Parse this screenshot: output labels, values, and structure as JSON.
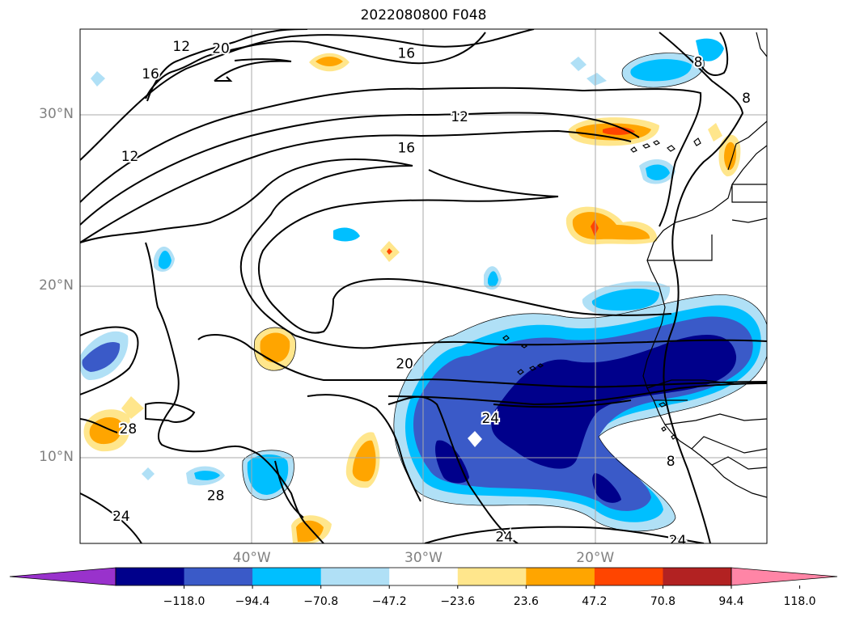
{
  "title": "2022080800 F048",
  "map": {
    "lon_range": [
      -50,
      -10
    ],
    "lat_range": [
      5,
      35
    ],
    "lat_ticks": [
      {
        "value": 30,
        "label": "30°N"
      },
      {
        "value": 20,
        "label": "20°N"
      },
      {
        "value": 10,
        "label": "10°N"
      }
    ],
    "lon_ticks": [
      {
        "value": -40,
        "label": "40°W"
      },
      {
        "value": -30,
        "label": "30°W"
      },
      {
        "value": -20,
        "label": "20°W"
      }
    ],
    "contour_labels": [
      {
        "text": "12",
        "lon": -44.1,
        "lat": 34.0
      },
      {
        "text": "20",
        "lon": -41.8,
        "lat": 33.9
      },
      {
        "text": "16",
        "lon": -31.0,
        "lat": 33.6
      },
      {
        "text": "8",
        "lon": -14.0,
        "lat": 33.1
      },
      {
        "text": "16",
        "lon": -45.9,
        "lat": 32.4
      },
      {
        "text": "8",
        "lon": -11.2,
        "lat": 31.0
      },
      {
        "text": "12",
        "lon": -27.9,
        "lat": 29.9
      },
      {
        "text": "16",
        "lon": -31.0,
        "lat": 28.1
      },
      {
        "text": "12",
        "lon": -47.1,
        "lat": 27.6
      },
      {
        "text": "20",
        "lon": -31.1,
        "lat": 15.5
      },
      {
        "text": "24",
        "lon": -26.1,
        "lat": 12.3
      },
      {
        "text": "28",
        "lon": -47.2,
        "lat": 11.7
      },
      {
        "text": "8",
        "lon": -15.6,
        "lat": 9.8
      },
      {
        "text": "28",
        "lon": -42.1,
        "lat": 7.8
      },
      {
        "text": "24",
        "lon": -47.6,
        "lat": 6.6
      },
      {
        "text": "24",
        "lon": -25.3,
        "lat": 5.4
      },
      {
        "text": "24",
        "lon": -15.2,
        "lat": 5.2
      }
    ]
  },
  "colorbar": {
    "levels": [
      -141.6,
      -118.0,
      -94.4,
      -70.8,
      -47.2,
      -23.6,
      23.6,
      47.2,
      70.8,
      94.4,
      118.0,
      141.6
    ],
    "colors": [
      "#9932cc",
      "#00008b",
      "#3a5ac8",
      "#00bfff",
      "#b0e0f6",
      "#ffffff",
      "#ffe68c",
      "#ffa500",
      "#ff4500",
      "#b22222",
      "#ff85a6"
    ],
    "under_color": "#9932cc",
    "over_color": "#ff85a6",
    "tick_labels": [
      "−118.0",
      "−94.4",
      "−70.8",
      "−47.2",
      "−23.6",
      "23.6",
      "47.2",
      "70.8",
      "94.4",
      "118.0"
    ]
  }
}
